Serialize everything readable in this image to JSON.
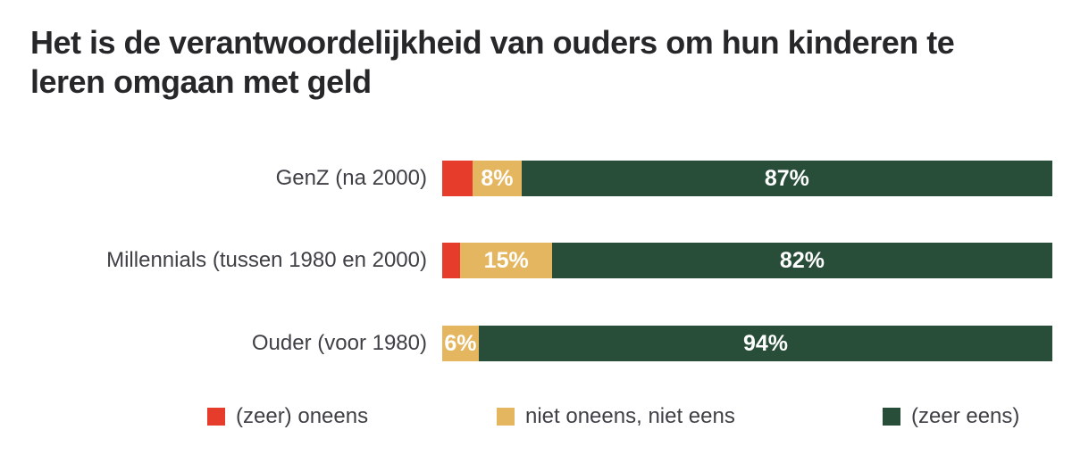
{
  "title": "Het is de verantwoordelijkheid van ouders om hun kinderen te leren omgaan met geld",
  "colors": {
    "disagree_red": "#e63c2c",
    "neutral_gold": "#e4b65f",
    "agree_green": "#284d39",
    "title_text": "#27272a",
    "label_text": "#3f3f46",
    "background": "#ffffff"
  },
  "chart_data": {
    "type": "bar",
    "orientation": "horizontal",
    "stacked": true,
    "title": "Het is de verantwoordelijkheid van ouders om hun kinderen te leren omgaan met geld",
    "categories": [
      "GenZ (na 2000)",
      "Millennials (tussen 1980 en 2000)",
      "Ouder (voor 1980)"
    ],
    "series": [
      {
        "name": "(zeer) oneens",
        "color": "#e63c2c",
        "values": [
          5,
          3,
          0
        ],
        "labels": [
          "",
          "",
          ""
        ]
      },
      {
        "name": "niet oneens, niet eens",
        "color": "#e4b65f",
        "values": [
          8,
          15,
          6
        ],
        "labels": [
          "8%",
          "15%",
          "6%"
        ]
      },
      {
        "name": "(zeer eens)",
        "color": "#284d39",
        "values": [
          87,
          82,
          94
        ],
        "labels": [
          "87%",
          "82%",
          "94%"
        ]
      }
    ],
    "xlim": [
      0,
      100
    ],
    "value_format": "percent",
    "grid": false,
    "legend_position": "bottom"
  }
}
